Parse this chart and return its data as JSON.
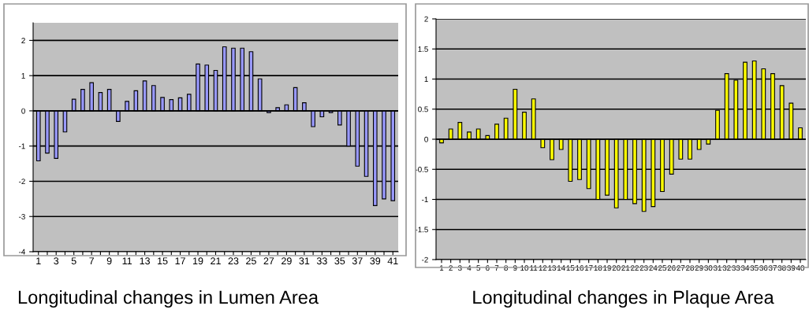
{
  "chart_data": [
    {
      "type": "bar",
      "title": "Longitudinal changes in Lumen Area",
      "categories": [
        "1",
        null,
        "3",
        null,
        "5",
        null,
        "7",
        null,
        "9",
        null,
        "11",
        null,
        "13",
        null,
        "15",
        null,
        "17",
        null,
        "19",
        null,
        "21",
        null,
        "23",
        null,
        "25",
        null,
        "27",
        null,
        "29",
        null,
        "31",
        null,
        "33",
        null,
        "35",
        null,
        "37",
        null,
        "39",
        null,
        "41"
      ],
      "values": [
        -1.42,
        -1.2,
        -1.35,
        -0.6,
        0.33,
        0.61,
        0.8,
        0.52,
        0.61,
        -0.3,
        0.27,
        0.57,
        0.85,
        0.72,
        0.38,
        0.32,
        0.37,
        0.47,
        1.33,
        1.3,
        1.15,
        1.82,
        1.78,
        1.78,
        1.68,
        0.91,
        -0.05,
        0.09,
        0.17,
        0.66,
        0.23,
        -0.45,
        -0.17,
        -0.05,
        -0.4,
        -1.0,
        -1.57,
        -1.86,
        -2.69,
        -2.5,
        -2.55
      ],
      "color": "#9999ff",
      "ylim": [
        -4,
        2.5
      ],
      "yticks": [
        -4,
        -3,
        -2,
        -1,
        0,
        1,
        2
      ],
      "grid": "y"
    },
    {
      "type": "bar",
      "title": "Longitudinal changes in Plaque Area",
      "categories": [
        "1",
        "2",
        "3",
        "4",
        "5",
        "6",
        "7",
        "8",
        "9",
        "10",
        "11",
        "12",
        "13",
        "14",
        "15",
        "16",
        "17",
        "18",
        "19",
        "20",
        "21",
        "22",
        "23",
        "24",
        "25",
        "26",
        "27",
        "28",
        "29",
        "30",
        "31",
        "32",
        "33",
        "34",
        "35",
        "36",
        "37",
        "38",
        "39",
        "40"
      ],
      "values": [
        -0.06,
        0.17,
        0.28,
        0.12,
        0.17,
        0.06,
        0.25,
        0.35,
        0.83,
        0.45,
        0.67,
        -0.14,
        -0.34,
        -0.17,
        -0.7,
        -0.67,
        -0.82,
        -1.0,
        -0.93,
        -1.14,
        -1.0,
        -1.07,
        -1.2,
        -1.12,
        -0.87,
        -0.58,
        -0.33,
        -0.33,
        -0.17,
        -0.08,
        0.48,
        1.09,
        0.98,
        1.28,
        1.3,
        1.17,
        1.09,
        0.89,
        0.6,
        0.19
      ],
      "color": "#ffff00",
      "ylim": [
        -2,
        2
      ],
      "yticks": [
        -2,
        -1.5,
        -1,
        -0.5,
        0,
        0.5,
        1,
        1.5,
        2
      ],
      "grid": "y"
    }
  ]
}
